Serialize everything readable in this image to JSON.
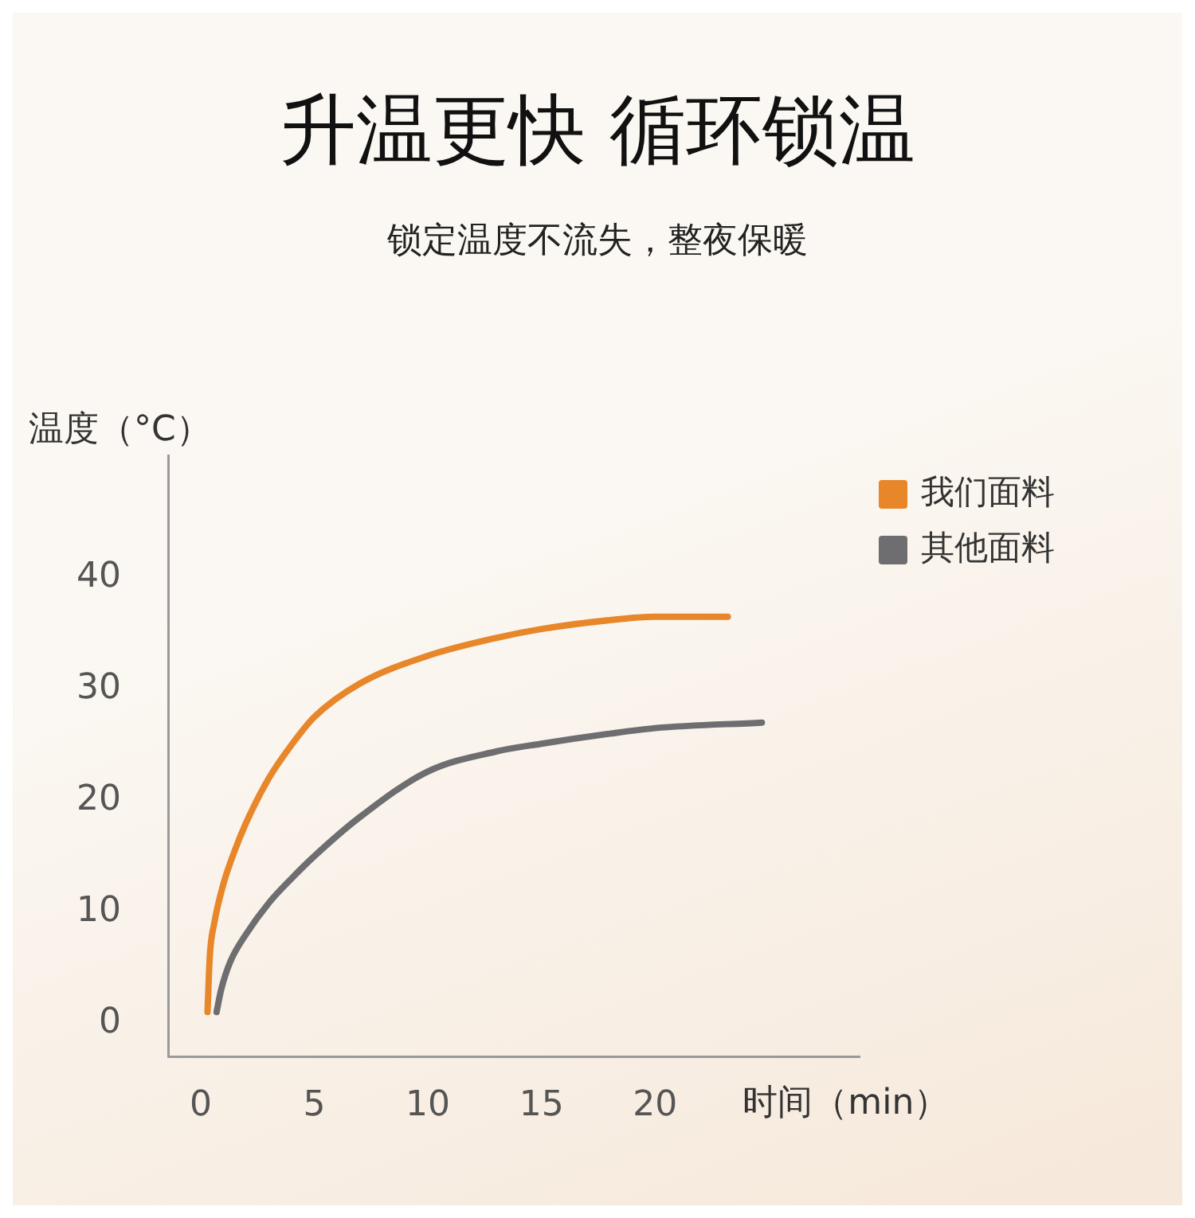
{
  "chart_data": {
    "type": "line",
    "title": "升温更快 循环锁温",
    "subtitle": "锁定温度不流失，整夜保暖",
    "xlabel": "时间（min）",
    "ylabel": "温度（°C）",
    "xlim": [
      -1.4,
      29
    ],
    "ylim": [
      -3,
      51
    ],
    "xticks": [
      0,
      5,
      10,
      15,
      20
    ],
    "yticks": [
      0,
      10,
      20,
      30,
      40
    ],
    "grid": false,
    "legend": "top right",
    "marker": "none",
    "line_style": "solid",
    "series": [
      {
        "name": "我们面料",
        "color": "#e8862a",
        "x": [
          0.3,
          0.4,
          0.6,
          1,
          1.5,
          2,
          3,
          4,
          5,
          7,
          10,
          13,
          15,
          18,
          20,
          23.2
        ],
        "values": [
          1,
          6,
          9,
          12.5,
          15.5,
          18,
          22,
          25,
          27.5,
          30.5,
          33,
          34.6,
          35.4,
          36.2,
          36.5,
          36.5
        ]
      },
      {
        "name": "其他面料",
        "color": "#6e6e70",
        "x": [
          0.7,
          0.9,
          1.3,
          2,
          3,
          4,
          5,
          7,
          10,
          13,
          15,
          18,
          20,
          24.7
        ],
        "values": [
          1,
          3,
          5.5,
          8,
          10.8,
          13,
          15,
          18.5,
          22.6,
          24.4,
          25.1,
          26,
          26.5,
          27
        ]
      }
    ]
  }
}
